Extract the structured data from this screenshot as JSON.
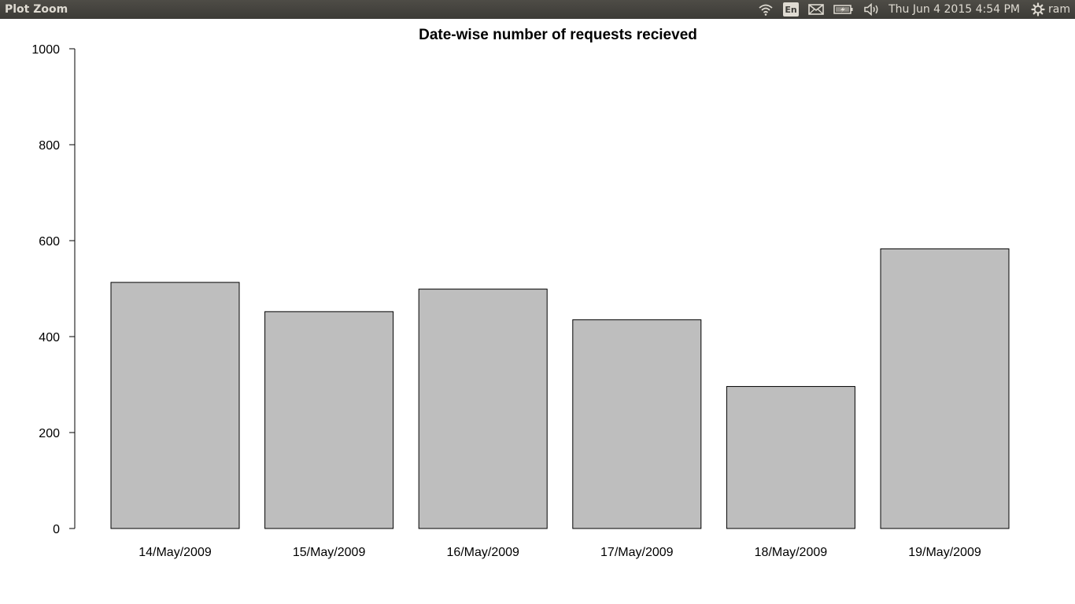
{
  "window": {
    "title": "Plot Zoom"
  },
  "panel": {
    "language": "En",
    "clock": "Thu Jun  4 2015  4:54 PM",
    "user": "ram",
    "icons": [
      "wifi-icon",
      "keyboard-language-icon",
      "mail-icon",
      "battery-icon",
      "volume-icon",
      "settings-gear-icon"
    ]
  },
  "chart_data": {
    "type": "bar",
    "title": "Date-wise number of requests recieved",
    "xlabel": "",
    "ylabel": "",
    "categories": [
      "14/May/2009",
      "15/May/2009",
      "16/May/2009",
      "17/May/2009",
      "18/May/2009",
      "19/May/2009"
    ],
    "values": [
      513,
      452,
      499,
      435,
      296,
      583
    ],
    "ylim": [
      0,
      1000
    ],
    "yticks": [
      0,
      200,
      400,
      600,
      800,
      1000
    ],
    "bar_color": "#bebebe",
    "bar_border_color": "#000000",
    "grid": false,
    "legend": "none"
  }
}
